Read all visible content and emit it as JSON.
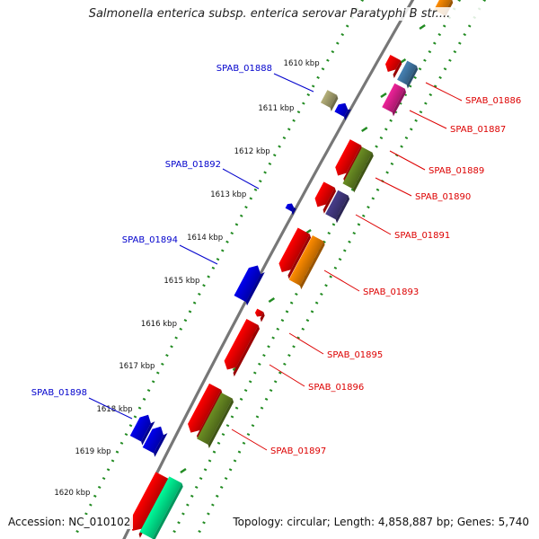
{
  "title": "Salmonella enterica subsp. enterica serovar Paratyphi B str....",
  "accession": "Accession: NC_010102",
  "topology": "Topology: circular; Length: 4,858,887 bp; Genes: 5,740",
  "colors": {
    "backbone": "#777777",
    "tick_dots": "#228b22",
    "forward_label": "#0000cc",
    "reverse_label": "#dd0000"
  },
  "scale_labels": [
    "1610 kbp",
    "1611 kbp",
    "1612 kbp",
    "1613 kbp",
    "1614 kbp",
    "1615 kbp",
    "1616 kbp",
    "1617 kbp",
    "1618 kbp",
    "1619 kbp",
    "1620 kbp"
  ],
  "forward_genes": [
    {
      "label": "SPAB_01888",
      "color": "#b5b07a"
    },
    {
      "label": "",
      "color": "#0000ee"
    },
    {
      "label": "SPAB_01892",
      "color": "#0000ee"
    },
    {
      "label": "SPAB_01894",
      "color": "#0000ee"
    },
    {
      "label": "SPAB_01898",
      "color": "#0000ee"
    },
    {
      "label": "",
      "color": "#0000ee"
    }
  ],
  "reverse_genes": [
    {
      "label": "SPAB_01886",
      "color": "#ff0000"
    },
    {
      "label": "SPAB_01887",
      "color": "#ee2299"
    },
    {
      "label": "SPAB_01889",
      "color": "#ff0000"
    },
    {
      "label": "SPAB_01890",
      "color": "#ff0000"
    },
    {
      "label": "SPAB_01891",
      "color": "#ff0000"
    },
    {
      "label": "SPAB_01893",
      "color": "#ff0000"
    },
    {
      "label": "SPAB_01895",
      "color": "#ff0000"
    },
    {
      "label": "SPAB_01896",
      "color": "#ff0000"
    },
    {
      "label": "SPAB_01897",
      "color": "#ff0000"
    },
    {
      "label": "",
      "color": "#ff0000"
    }
  ],
  "other_features": [
    {
      "color": "#4682b4"
    },
    {
      "color": "#6b8e23"
    },
    {
      "color": "#483d8b"
    },
    {
      "color": "#ff8c00"
    },
    {
      "color": "#6b8e23"
    },
    {
      "color": "#00fa9a"
    },
    {
      "color": "#ff8c00"
    }
  ]
}
